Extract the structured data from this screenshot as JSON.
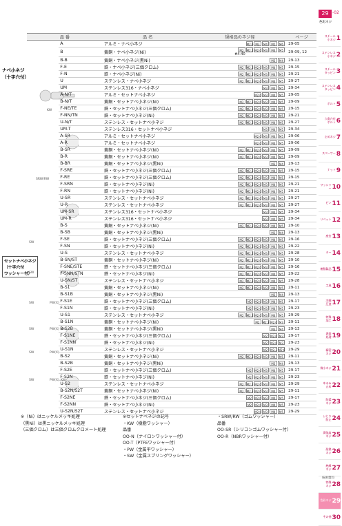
{
  "header": {
    "page_tab": "29",
    "page_sub": "-02",
    "section_label": "色彩ネジ"
  },
  "table": {
    "col_headers": [
      "品 番",
      "品 名",
      "規格品のネジ径",
      "ページ"
    ],
    "rows": [
      {
        "code": "A",
        "name": "アルミ・ナベ小ネジ",
        "sizes": [
          "M2.6",
          "M3",
          "M4",
          "M5",
          "M6"
        ],
        "page": "29-05"
      },
      {
        "code": "B",
        "name": "黄銅・ナベ小ネジ(Ni)",
        "sizes": [
          "M2",
          "M2.3",
          "M2.6",
          "M3",
          "M4",
          "M5"
        ],
        "page": "29-09, 12",
        "note": "#4-40"
      },
      {
        "code": "B-B",
        "name": "黄銅・ナベ小ネジ(黒Ni)",
        "sizes": [
          "M3",
          "M4"
        ],
        "page": "29-13"
      },
      {
        "code": "F-E",
        "name": "鉄・ナベ小ネジ(三価クロム)",
        "sizes": [
          "M2",
          "M2.3",
          "M2.6",
          "M3",
          "M4",
          "M5"
        ],
        "page": "29-15"
      },
      {
        "code": "F-N",
        "name": "鉄・ナベ小ネジ(Ni)",
        "sizes": [
          "M2",
          "M2.3",
          "M2.6",
          "M3",
          "M4",
          "M5"
        ],
        "page": "29-21"
      },
      {
        "code": "U",
        "name": "ステンレス・ナベ小ネジ",
        "sizes": [
          "M2",
          "M2.3",
          "M2.6",
          "M3",
          "M4",
          "M5"
        ],
        "page": "29-27"
      },
      {
        "code": "UM",
        "name": "ステンレス316・ナベ小ネジ",
        "sizes": [
          "M3",
          "M4",
          "M5"
        ],
        "page": "29-34"
      },
      {
        "code": "A-N/T",
        "name": "アルミ・セットナベ小ネジ",
        "sizes": [
          "M2.6",
          "M3",
          "M4",
          "M5"
        ],
        "page": "29-05"
      },
      {
        "code": "B-N/T",
        "name": "黄銅・セットナベ小ネジ(Ni)",
        "sizes": [
          "M2",
          "M2.3",
          "M2.6",
          "M3",
          "M4",
          "M5"
        ],
        "page": "29-09"
      },
      {
        "code": "F-NE/TE",
        "name": "鉄・セットナベ小ネジ(三価クロム)",
        "sizes": [
          "M2",
          "M2.3",
          "M2.6",
          "M3",
          "M4",
          "M5"
        ],
        "page": "29-15"
      },
      {
        "code": "F-NN/TN",
        "name": "鉄・セットナベ小ネジ(Ni)",
        "sizes": [
          "M2",
          "M2.3",
          "M2.6",
          "M3",
          "M4",
          "M5"
        ],
        "page": "29-21"
      },
      {
        "code": "U-N/T",
        "name": "ステンレス・セットナベ小ネジ",
        "sizes": [
          "M2",
          "M2.3",
          "M2.6",
          "M3",
          "M4",
          "M5"
        ],
        "page": "29-27"
      },
      {
        "code": "UM-T",
        "name": "ステンレス316・セットナベ小ネジ",
        "sizes": [
          "M3",
          "M4",
          "M5"
        ],
        "page": "29-34"
      },
      {
        "code": "A-SR",
        "name": "アルミ・セットナベ小ネジ",
        "sizes": [
          "M2.6",
          "M3",
          "M4",
          "M5"
        ],
        "page": "29-06"
      },
      {
        "code": "A-R",
        "name": "アルミ・セットナベ小ネジ",
        "sizes": [
          "M2.6",
          "M3",
          "M4",
          "M5"
        ],
        "page": "29-06"
      },
      {
        "code": "B-SR",
        "name": "黄銅・セットナベ小ネジ(Ni)",
        "sizes": [
          "M2",
          "M2.3",
          "M2.6",
          "M3",
          "M4",
          "M5"
        ],
        "page": "29-09"
      },
      {
        "code": "B-R",
        "name": "黄銅・セットナベ小ネジ(Ni)",
        "sizes": [
          "M2",
          "M2.3",
          "M2.6",
          "M3",
          "M4",
          "M5"
        ],
        "page": "29-09"
      },
      {
        "code": "B-BR",
        "name": "黄銅・セットナベ小ネジ(黒Ni)",
        "sizes": [
          "M3",
          "M4"
        ],
        "page": "29-13"
      },
      {
        "code": "F-SRE",
        "name": "鉄・セットナベ小ネジ(三価クロム)",
        "sizes": [
          "M2",
          "M2.3",
          "M2.6",
          "M3",
          "M4",
          "M5"
        ],
        "page": "29-15"
      },
      {
        "code": "F-RE",
        "name": "鉄・セットナベ小ネジ(三価クロム)",
        "sizes": [
          "M2",
          "M2.3",
          "M2.6",
          "M3",
          "M4",
          "M5"
        ],
        "page": "29-15"
      },
      {
        "code": "F-SRN",
        "name": "鉄・セットナベ小ネジ(Ni)",
        "sizes": [
          "M2",
          "M2.3",
          "M2.6",
          "M3",
          "M4",
          "M5"
        ],
        "page": "29-21"
      },
      {
        "code": "F-RN",
        "name": "鉄・セットナベ小ネジ(Ni)",
        "sizes": [
          "M2",
          "M2.3",
          "M2.6",
          "M3",
          "M4",
          "M5"
        ],
        "page": "29-21"
      },
      {
        "code": "U-SR",
        "name": "ステンレス・セットナベ小ネジ",
        "sizes": [
          "M2",
          "M2.3",
          "M2.6",
          "M3",
          "M4",
          "M5"
        ],
        "page": "29-27"
      },
      {
        "code": "U-R",
        "name": "ステンレス・セットナベ小ネジ",
        "sizes": [
          "M2",
          "M2.3",
          "M2.6",
          "M3",
          "M4",
          "M5"
        ],
        "page": "29-27"
      },
      {
        "code": "UM-SR",
        "name": "ステンレス316・セットナベ小ネジ",
        "sizes": [
          "M3",
          "M4",
          "M5"
        ],
        "page": "29-34"
      },
      {
        "code": "UM-R",
        "name": "ステンレス316・セットナベ小ネジ",
        "sizes": [
          "M3",
          "M4",
          "M5"
        ],
        "page": "29-34"
      },
      {
        "code": "B-S",
        "name": "黄銅・セットナベ小ネジ(Ni)",
        "sizes": [
          "M2",
          "M2.3",
          "M2.6",
          "M3",
          "M4",
          "M5"
        ],
        "page": "29-10"
      },
      {
        "code": "B-SB",
        "name": "黄銅・セットナベ小ネジ(黒Ni)",
        "sizes": [
          "M3",
          "M4"
        ],
        "page": "29-13"
      },
      {
        "code": "F-SE",
        "name": "鉄・セットナベ小ネジ(三価クロム)",
        "sizes": [
          "M2",
          "M2.3",
          "M2.6",
          "M3",
          "M4",
          "M5"
        ],
        "page": "29-16"
      },
      {
        "code": "F-SN",
        "name": "鉄・セットナベ小ネジ(Ni)",
        "sizes": [
          "M2",
          "M2.3",
          "M2.6",
          "M3",
          "M4",
          "M5"
        ],
        "page": "29-22"
      },
      {
        "code": "U-S",
        "name": "ステンレス・セットナベ小ネジ",
        "sizes": [
          "M2",
          "M2.3",
          "M2.6",
          "M3",
          "M4",
          "M5"
        ],
        "page": "29-28"
      },
      {
        "code": "B-SN/ST",
        "name": "黄銅・セットナベ小ネジ(Ni)",
        "sizes": [
          "M2",
          "M2.3",
          "M2.6",
          "M3",
          "M4",
          "M5"
        ],
        "page": "29-10"
      },
      {
        "code": "F-SNE/STE",
        "name": "鉄・セットナベ小ネジ(三価クロム)",
        "sizes": [
          "M2",
          "M2.3",
          "M2.6",
          "M3",
          "M4",
          "M5"
        ],
        "page": "29-16"
      },
      {
        "code": "F-SNN/STN",
        "name": "鉄・セットナベ小ネジ(Ni)",
        "sizes": [
          "M2",
          "M2.3",
          "M2.6",
          "M3",
          "M4",
          "M5"
        ],
        "page": "29-22"
      },
      {
        "code": "U-SN/ST",
        "name": "ステンレス・セットナベ小ネジ",
        "sizes": [
          "M2",
          "M2.3",
          "M2.6",
          "M3",
          "M4",
          "M5"
        ],
        "page": "29-28"
      },
      {
        "code": "B-S1",
        "name": "黄銅・セットナベ小ネジ(Ni)",
        "sizes": [
          "M2",
          "M2.3",
          "M2.6",
          "M3",
          "M4",
          "M5"
        ],
        "page": "29-11"
      },
      {
        "code": "B-S1B",
        "name": "黄銅・セットナベ小ネジ(黒Ni)",
        "sizes": [
          "M3",
          "M4"
        ],
        "page": "29-13"
      },
      {
        "code": "F-S1E",
        "name": "鉄・セットナベ小ネジ(三価クロム)",
        "sizes": [
          "M2",
          "M2.6",
          "M3",
          "M4",
          "M5"
        ],
        "page": "29-17"
      },
      {
        "code": "F-S1N",
        "name": "鉄・セットナベ小ネジ(Ni)",
        "sizes": [
          "M2",
          "M2.6",
          "M3",
          "M4",
          "M5"
        ],
        "page": "29-23"
      },
      {
        "code": "U-S1",
        "name": "ステンレス・セットナベ小ネジ",
        "sizes": [
          "M2",
          "M2.3",
          "M2.6",
          "M3",
          "M4",
          "M5"
        ],
        "page": "29-29"
      },
      {
        "code": "B-S1N",
        "name": "黄銅・セットナベ小ネジ(Ni)",
        "sizes": [
          "M2",
          "M2.3",
          "M2.6",
          "M3"
        ],
        "page": "29-11"
      },
      {
        "code": "B-S2B",
        "name": "黄銅・セットナベ小ネジ(黒Ni)",
        "sizes": [
          "M3",
          "M4"
        ],
        "page": "29-13"
      },
      {
        "code": "F-S1NE",
        "name": "鉄・セットナベ小ネジ(三価クロム)",
        "sizes": [
          "M2",
          "M2.6",
          "M3"
        ],
        "page": "29-17"
      },
      {
        "code": "F-S1NN",
        "name": "鉄・セットナベ小ネジ(Ni)",
        "sizes": [
          "M2",
          "M2.6",
          "M3"
        ],
        "page": "29-23"
      },
      {
        "code": "U-S1N",
        "name": "ステンレス・セットナベ小ネジ",
        "sizes": [
          "M2",
          "M2.3",
          "M2.6"
        ],
        "page": "29-29"
      },
      {
        "code": "B-S2",
        "name": "黄銅・セットナベ小ネジ(Ni)",
        "sizes": [
          "M2",
          "M2.3",
          "M2.6",
          "M3",
          "M4",
          "M5"
        ],
        "page": "29-11"
      },
      {
        "code": "B-S2B",
        "name": "黄銅・セットナベ小ネジ(黒Ni)",
        "sizes": [
          "M3",
          "M4"
        ],
        "page": "29-13"
      },
      {
        "code": "F-S2E",
        "name": "鉄・セットナベ小ネジ(三価クロム)",
        "sizes": [
          "M2",
          "M2.6",
          "M3",
          "M4",
          "M5"
        ],
        "page": "29-17"
      },
      {
        "code": "F-S2N",
        "name": "鉄・セットナベ小ネジ(Ni)",
        "sizes": [
          "M2",
          "M2.6",
          "M3",
          "M4",
          "M5"
        ],
        "page": "29-23"
      },
      {
        "code": "U-S2",
        "name": "ステンレス・セットナベ小ネジ",
        "sizes": [
          "M2",
          "M2.3",
          "M2.6",
          "M3",
          "M4",
          "M5"
        ],
        "page": "29-29"
      },
      {
        "code": "B-S2N/S2T",
        "name": "黄銅・セットナベ小ネジ(Ni)",
        "sizes": [
          "M2",
          "M2.3",
          "M2.6",
          "M3",
          "M4",
          "M5"
        ],
        "page": "29-11"
      },
      {
        "code": "F-S2NE",
        "name": "鉄・セットナベ小ネジ(三価クロム)",
        "sizes": [
          "M2",
          "M2.6",
          "M3",
          "M4",
          "M5"
        ],
        "page": "29-17"
      },
      {
        "code": "F-S2NN",
        "name": "鉄・セットナベ小ネジ(Ni)",
        "sizes": [
          "M2",
          "M2.6",
          "M3",
          "M4",
          "M5"
        ],
        "page": "29-23"
      },
      {
        "code": "U-S2N/S2T",
        "name": "ステンレス・セットナベ小ネジ",
        "sizes": [
          "M2.6",
          "M3",
          "M4",
          "M5"
        ],
        "page": "29-29"
      }
    ]
  },
  "groups": {
    "group1": "ナベ小ネジ\n（十字穴付）",
    "group2": "セットナベ小ネジ\n（十字穴付\nワッシャー付）"
  },
  "illustration_labels": [
    "KW",
    "SRW/RW",
    "SW",
    "SW",
    "KW",
    "SW",
    "PW(X)",
    "SW",
    "PW(X)",
    "KW",
    "SW",
    "PW(X)",
    "SW",
    "PW(X)",
    "KW"
  ],
  "right_nav": [
    {
      "label": "スチール\n小ネジ",
      "num": "1"
    },
    {
      "label": "ステンレス\n小ネジ",
      "num": "2"
    },
    {
      "label": "スチール\nタッピン",
      "num": "3"
    },
    {
      "label": "ステンレス\nタッピン",
      "num": "4"
    },
    {
      "label": "ボルト",
      "num": "5"
    },
    {
      "label": "六角穴付\nボルト",
      "num": "6"
    },
    {
      "label": "止めネジ",
      "num": "7"
    },
    {
      "label": "スペーサー",
      "num": "8"
    },
    {
      "label": "ナット",
      "num": "9"
    },
    {
      "label": "ワッシャー",
      "num": "10"
    },
    {
      "label": "ピン",
      "num": "11"
    },
    {
      "label": "リベット",
      "num": "12"
    },
    {
      "label": "座金",
      "num": "13"
    },
    {
      "label": "キー",
      "num": "14"
    },
    {
      "label": "樹脂製品",
      "num": "15"
    },
    {
      "label": "工具",
      "num": "16"
    },
    {
      "label": "冷間\n圧造",
      "num": "17"
    },
    {
      "label": "特殊\n加工",
      "num": "18"
    },
    {
      "label": "表面\n処理",
      "num": "19"
    },
    {
      "label": "精密\nネジ",
      "num": "20"
    },
    {
      "label": "微小ネジ",
      "num": "21"
    },
    {
      "label": "ゆるみ\n止め",
      "num": "22"
    },
    {
      "label": "防錆\nネジ",
      "num": "23"
    },
    {
      "label": "いじり\n防止",
      "num": "24"
    },
    {
      "label": "高強度\nネジ",
      "num": "25"
    },
    {
      "label": "耐熱\nネジ",
      "num": "26"
    },
    {
      "label": "絶縁\nネジ",
      "num": "27"
    },
    {
      "label": "特殊\nネジ",
      "num": "28"
    },
    {
      "label": "色彩ネジ",
      "num": "29"
    },
    {
      "label": "その他",
      "num": "30"
    }
  ],
  "nav_bottom": "技術資料",
  "footnotes": {
    "col1": [
      "※（Ni）はニッケルメッキ処理",
      "（黒Ni）は黒ニッケルメッキ処理",
      "（三価クロム）は三価クロムクロメート処理"
    ],
    "col2": [
      "※セットナベネジの記号",
      "・KW（樹脂ワッシャー）",
      "品番",
      "OO-N（ナイロンワッシャー付）",
      "OO-T（PTFEワッシャー付）",
      "・PW（金属平ワッシャー）",
      "・SW（金属スプリングワッシャー）"
    ],
    "col3": [
      "・SRW/RW（ゴムワッシャー）",
      "品番",
      "OO-SR（シリコンゴムワッシャー付）",
      "OO-R（NBRワッシャー付）"
    ]
  }
}
